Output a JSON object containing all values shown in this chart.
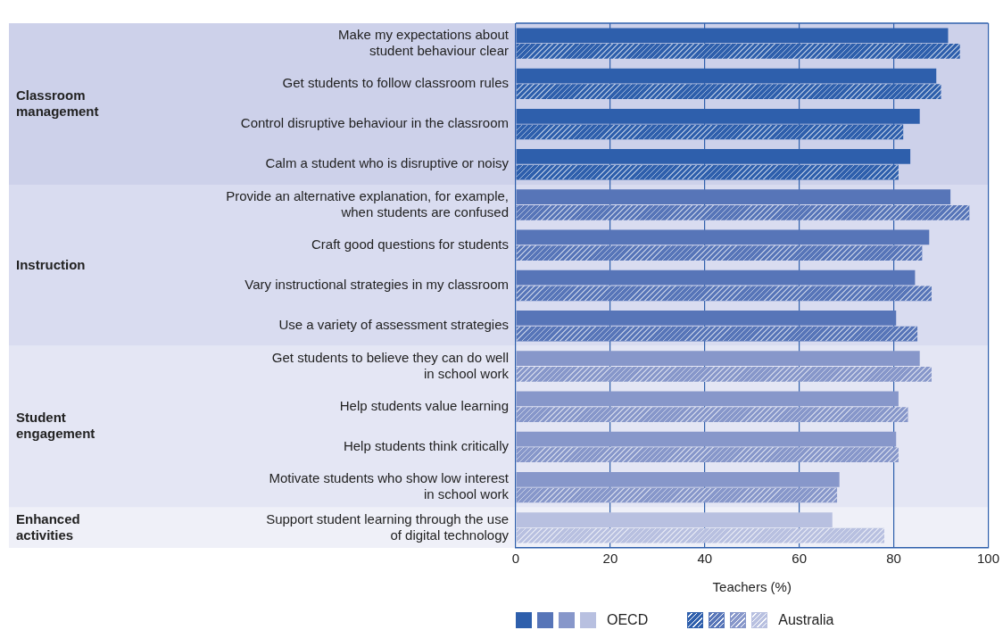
{
  "chart_data": {
    "type": "bar",
    "orientation": "horizontal",
    "xlabel": "Teachers (%)",
    "categories": [
      "Make my expectations about\nstudent behaviour clear",
      "Get students to follow classroom rules",
      "Control disruptive behaviour in the classroom",
      "Calm a student who is disruptive or noisy",
      "Provide an alternative explanation, for example,\nwhen students are confused",
      "Craft good questions for students",
      "Vary instructional strategies in my classroom",
      "Use a variety of assessment strategies",
      "Get students to believe they can do well\nin school work",
      "Help students value learning",
      "Help students think critically",
      "Motivate students who show low interest\nin school work",
      "Support student learning through the use\nof digital technology"
    ],
    "series": [
      {
        "name": "OECD",
        "colors": [
          "#2e5fac",
          "#2e5fac",
          "#2e5fac",
          "#2e5fac",
          "#5775b8",
          "#5775b8",
          "#5775b8",
          "#5775b8",
          "#8797ca",
          "#8797ca",
          "#8797ca",
          "#8797ca",
          "#b8c0e0"
        ],
        "values": [
          91.5,
          89,
          85.5,
          83.5,
          92,
          87.5,
          84.5,
          80.5,
          85.5,
          81,
          80.5,
          68.5,
          67
        ]
      },
      {
        "name": "Australia",
        "colors": [
          "#2e5fac",
          "#2e5fac",
          "#2e5fac",
          "#2e5fac",
          "#5775b8",
          "#5775b8",
          "#5775b8",
          "#5775b8",
          "#8797ca",
          "#8797ca",
          "#8797ca",
          "#8797ca",
          "#b8c0e0"
        ],
        "values": [
          94,
          90,
          82,
          81,
          96,
          86,
          88,
          85,
          88,
          83,
          81,
          68,
          78
        ]
      }
    ],
    "xlim": [
      0,
      100
    ],
    "xticks": [
      0,
      20,
      40,
      60,
      80,
      100
    ],
    "grid": "x",
    "legend": "bottom",
    "bands": [
      {
        "axis": "y",
        "from": "Make my expectations about\nstudent behaviour clear",
        "to": "Calm a student who is disruptive or noisy",
        "label": "Classroom\nmanagement",
        "color": "#cdd1ea"
      },
      {
        "axis": "y",
        "from": "Provide an alternative explanation, for example,\nwhen students are confused",
        "to": "Use a variety of assessment strategies",
        "label": "Instruction",
        "color": "#d9dcf0"
      },
      {
        "axis": "y",
        "from": "Get students to believe they can do well\nin school work",
        "to": "Motivate students who show low interest\nin school work",
        "label": "Student\nengagement",
        "color": "#e4e6f4"
      },
      {
        "axis": "y",
        "from": "Support student learning through the use\nof digital technology",
        "to": "Support student learning through the use\nof digital technology",
        "label": "Enhanced\nactivities",
        "color": "#eff0f8"
      }
    ]
  }
}
